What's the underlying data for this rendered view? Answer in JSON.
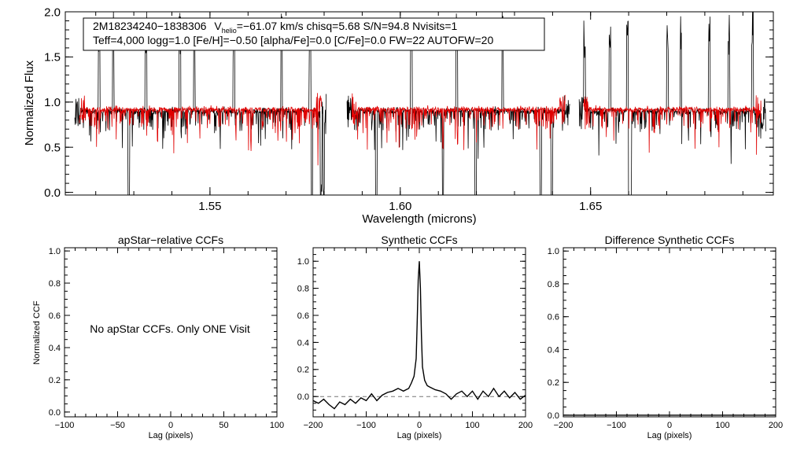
{
  "colors": {
    "observed": "#000000",
    "model": "#e00000",
    "baseline": "#777777",
    "frame": "#000000"
  },
  "chart_data": [
    {
      "id": "spectrum",
      "type": "line",
      "title": "",
      "xlabel": "Wavelength (microns)",
      "ylabel": "Normalized Flux",
      "xlim": [
        1.512,
        1.698
      ],
      "ylim": [
        -0.03,
        2.0
      ],
      "xticks": [
        1.55,
        1.6,
        1.65
      ],
      "xticklabels": [
        "1.55",
        "1.60",
        "1.65"
      ],
      "yticks": [
        0.0,
        0.5,
        1.0,
        1.5,
        2.0
      ],
      "yticklabels": [
        "0.0",
        "0.5",
        "1.0",
        "1.5",
        "2.0"
      ],
      "chips": [
        [
          1.5145,
          1.5805
        ],
        [
          1.586,
          1.6445
        ],
        [
          1.647,
          1.696
        ]
      ],
      "annotation": {
        "star": "2M18234240−1838306",
        "v_symbol": "V",
        "v_subscript": "helio",
        "v_rest": "=−61.07 km/s  chisq=5.68  S/N=94.8  Nvisits=1",
        "line2": "Teff=4,000 logg=1.0 [Fe/H]=−0.50 [alpha/Fe]=0.0 [C/Fe]=0.0 FW=22 AUTOFW=20"
      },
      "series": [
        {
          "name": "observed",
          "continuum": 0.9,
          "noise": 0.035,
          "emission_spikes": [
            1.5209,
            1.5246,
            1.5332,
            1.5421,
            1.5459,
            1.5563,
            1.5688,
            1.5763,
            1.6029,
            1.6112,
            1.6148,
            1.6269,
            1.6484,
            1.6551,
            1.6597,
            1.6702,
            1.6737,
            1.6812,
            1.6863,
            1.6925
          ],
          "deep_absorptions": [
            1.5287,
            1.5768,
            1.5792,
            1.5799,
            1.5937,
            1.6112,
            1.6198,
            1.6369,
            1.6398,
            1.6601,
            1.6605
          ]
        },
        {
          "name": "model",
          "continuum": 0.92,
          "noise": 0.03
        }
      ]
    },
    {
      "id": "apstar-ccf",
      "type": "line",
      "title": "apStar−relative CCFs",
      "xlabel": "Lag (pixels)",
      "ylabel": "Normalized CCF",
      "xlim": [
        -100,
        100
      ],
      "ylim": [
        -0.03,
        1.02
      ],
      "xticks": [
        -100,
        -50,
        0,
        50,
        100
      ],
      "xticklabels": [
        "−100",
        "−50",
        "0",
        "50",
        "100"
      ],
      "yticks": [
        0.0,
        0.2,
        0.4,
        0.6,
        0.8,
        1.0
      ],
      "yticklabels": [
        "0.0",
        "0.2",
        "0.4",
        "0.6",
        "0.8",
        "1.0"
      ],
      "message": "No apStar CCFs.  Only ONE Visit",
      "series": []
    },
    {
      "id": "synthetic-ccf",
      "type": "line",
      "title": "Synthetic CCFs",
      "xlabel": "Lag (pixels)",
      "ylabel": "",
      "xlim": [
        -200,
        200
      ],
      "ylim": [
        -0.15,
        1.1
      ],
      "xticks": [
        -200,
        -100,
        0,
        100,
        200
      ],
      "xticklabels": [
        "−200",
        "−100",
        "0",
        "100",
        "200"
      ],
      "yticks": [
        0.0,
        0.2,
        0.4,
        0.6,
        0.8,
        1.0
      ],
      "yticklabels": [
        "0.0",
        "0.2",
        "0.4",
        "0.6",
        "0.8",
        "1.0"
      ],
      "baseline": 0.0,
      "series": [
        {
          "name": "ccf",
          "x": [
            -200,
            -190,
            -180,
            -170,
            -160,
            -150,
            -140,
            -130,
            -120,
            -110,
            -100,
            -90,
            -80,
            -70,
            -60,
            -50,
            -40,
            -30,
            -20,
            -15,
            -10,
            -6,
            -4,
            -2,
            0,
            2,
            4,
            6,
            10,
            15,
            20,
            30,
            40,
            50,
            60,
            70,
            80,
            90,
            100,
            110,
            120,
            130,
            140,
            150,
            160,
            170,
            180,
            190,
            200
          ],
          "y": [
            -0.03,
            -0.05,
            -0.02,
            -0.06,
            -0.09,
            -0.04,
            -0.06,
            -0.02,
            -0.05,
            -0.01,
            -0.03,
            0.02,
            -0.03,
            0.01,
            0.03,
            0.04,
            0.06,
            0.04,
            0.06,
            0.1,
            0.15,
            0.28,
            0.55,
            0.86,
            1.0,
            0.8,
            0.45,
            0.22,
            0.12,
            0.08,
            0.07,
            0.05,
            0.04,
            0.02,
            -0.02,
            0.02,
            0.04,
            0.0,
            0.04,
            -0.02,
            0.04,
            0.0,
            0.06,
            0.0,
            0.04,
            -0.01,
            0.03,
            -0.02,
            0.01
          ]
        }
      ]
    },
    {
      "id": "difference-ccf",
      "type": "line",
      "title": "Difference Synthetic CCFs",
      "xlabel": "Lag (pixels)",
      "ylabel": "",
      "xlim": [
        -200,
        200
      ],
      "ylim": [
        -0.01,
        1.02
      ],
      "xticks": [
        -200,
        -100,
        0,
        100,
        200
      ],
      "xticklabels": [
        "−200",
        "−100",
        "0",
        "100",
        "200"
      ],
      "yticks": [
        0.0,
        0.2,
        0.4,
        0.6,
        0.8,
        1.0
      ],
      "yticklabels": [
        "0.0",
        "0.2",
        "0.4",
        "0.6",
        "0.8",
        "1.0"
      ],
      "series": [
        {
          "name": "difference",
          "x": [
            -200,
            200
          ],
          "y": [
            0.0,
            0.0
          ]
        }
      ]
    }
  ]
}
